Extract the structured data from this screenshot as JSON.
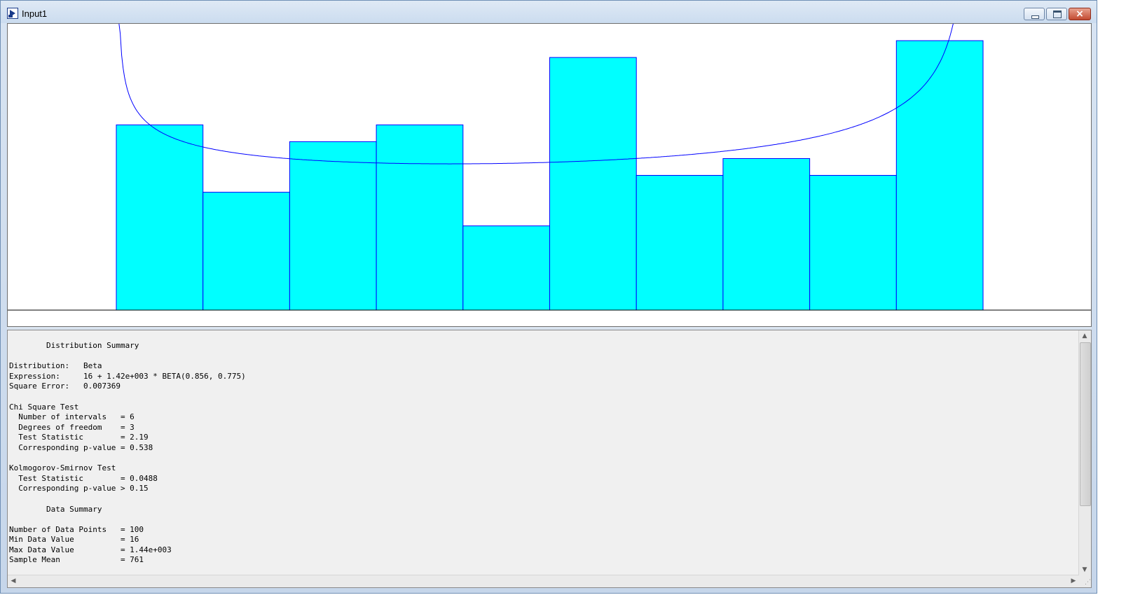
{
  "window": {
    "title": "Input1",
    "icon": "arena-input-analyzer-icon",
    "buttons": {
      "minimize": "minimize",
      "maximize": "maximize",
      "close": "×"
    }
  },
  "chart_data": {
    "type": "bar",
    "values": [
      0.11,
      0.07,
      0.1,
      0.11,
      0.05,
      0.15,
      0.08,
      0.09,
      0.08,
      0.16
    ],
    "ylim": [
      0,
      0.17
    ],
    "curve_label": "",
    "title": "",
    "xlabel": "",
    "ylabel": "",
    "grid": false,
    "bar_fill": "#00ffff",
    "bar_stroke": "#0000ff",
    "curve_color": "#0000ff"
  },
  "summary": {
    "lines": [
      "        Distribution Summary",
      "",
      "Distribution:   Beta",
      "Expression:     16 + 1.42e+003 * BETA(0.856, 0.775)",
      "Square Error:   0.007369",
      "",
      "Chi Square Test",
      "  Number of intervals   = 6",
      "  Degrees of freedom    = 3",
      "  Test Statistic        = 2.19",
      "  Corresponding p-value = 0.538",
      "",
      "Kolmogorov-Smirnov Test",
      "  Test Statistic        = 0.0488",
      "  Corresponding p-value > 0.15",
      "",
      "        Data Summary",
      "",
      "Number of Data Points   = 100",
      "Min Data Value          = 16",
      "Max Data Value          = 1.44e+003",
      "Sample Mean             = 761"
    ]
  }
}
